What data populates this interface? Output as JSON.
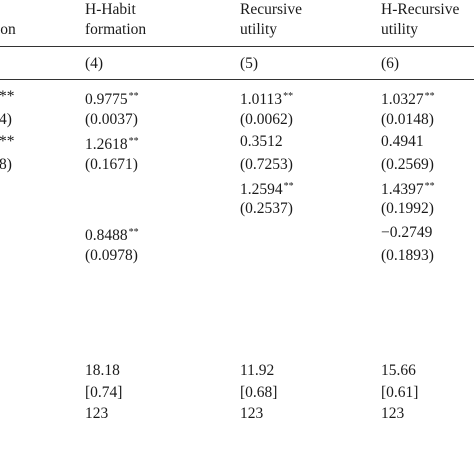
{
  "table": {
    "left_column": {
      "header": "ion",
      "cells": [
        "**",
        "4)",
        "**",
        "8)"
      ]
    },
    "columns": [
      {
        "header": [
          "H-Habit",
          "formation"
        ],
        "number": "(4)"
      },
      {
        "header": [
          "Recursive",
          "utility"
        ],
        "number": "(5)"
      },
      {
        "header": [
          "H-Recursive",
          "utility"
        ],
        "number": "(6)"
      }
    ],
    "rows": [
      [
        {
          "v": "0.9775",
          "sig": "**"
        },
        {
          "v": "1.0113",
          "sig": "**"
        },
        {
          "v": "1.0327",
          "sig": "**"
        }
      ],
      [
        {
          "v": "(0.0037)"
        },
        {
          "v": "(0.0062)"
        },
        {
          "v": "(0.0148)"
        }
      ],
      [
        {
          "v": "1.2618",
          "sig": "**"
        },
        {
          "v": "0.3512"
        },
        {
          "v": "0.4941"
        }
      ],
      [
        {
          "v": "(0.1671)"
        },
        {
          "v": "(0.7253)"
        },
        {
          "v": "(0.2569)"
        }
      ],
      [
        null,
        {
          "v": "1.2594",
          "sig": "**"
        },
        {
          "v": "1.4397",
          "sig": "**"
        }
      ],
      [
        null,
        {
          "v": "(0.2537)"
        },
        {
          "v": "(0.1992)"
        }
      ],
      [
        {
          "v": "0.8488",
          "sig": "**"
        },
        null,
        {
          "v": "−0.2749"
        }
      ],
      [
        {
          "v": "(0.0978)"
        },
        null,
        {
          "v": "(0.1893)"
        }
      ]
    ],
    "footer_rows": [
      [
        "18.18",
        "11.92",
        "15.66"
      ],
      [
        "[0.74]",
        "[0.68]",
        "[0.61]"
      ],
      [
        "123",
        "123",
        "123"
      ]
    ]
  }
}
